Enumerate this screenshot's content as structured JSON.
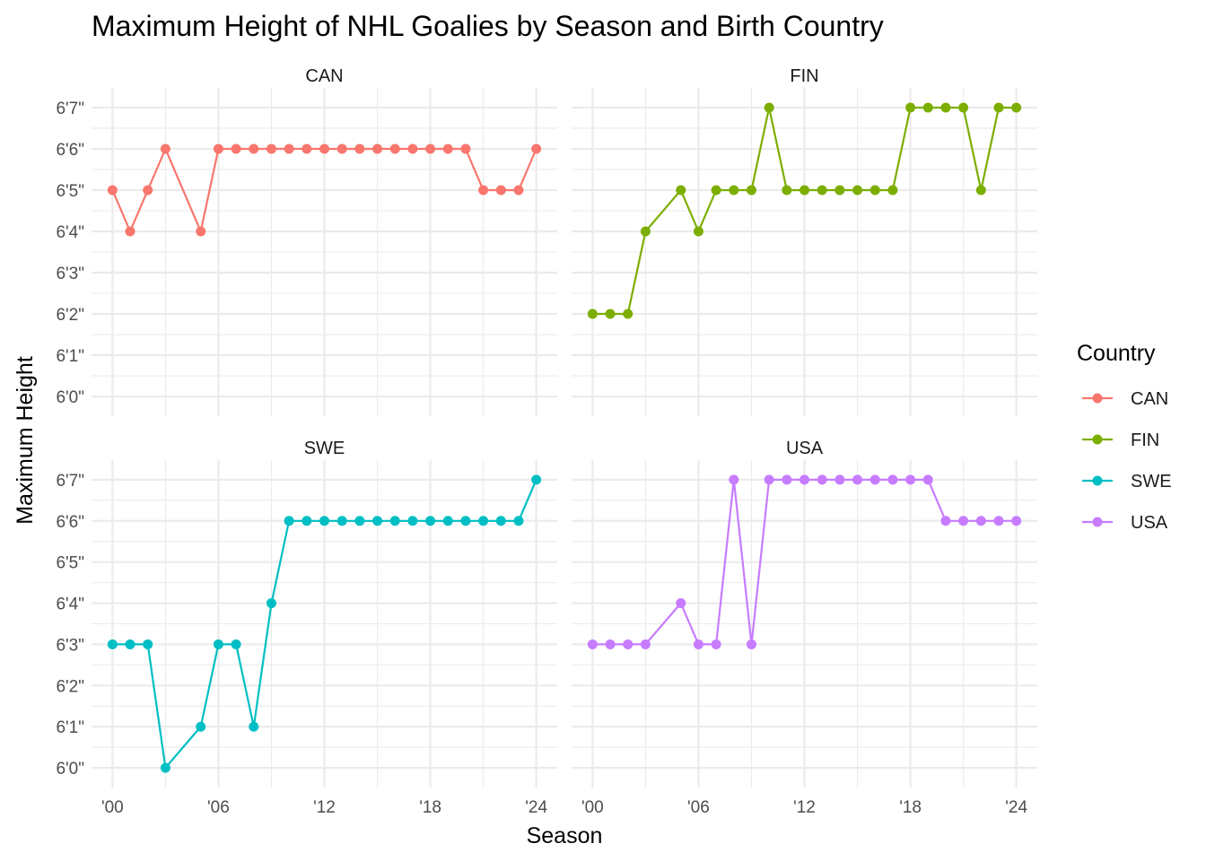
{
  "chart_data": {
    "type": "line",
    "title": "Maximum Height of NHL Goalies by Season and Birth Country",
    "xlabel": "Season",
    "ylabel": "Maximum Height",
    "x": [
      2000,
      2001,
      2002,
      2003,
      2004,
      2005,
      2006,
      2007,
      2008,
      2009,
      2010,
      2011,
      2012,
      2013,
      2014,
      2015,
      2016,
      2017,
      2018,
      2019,
      2020,
      2021,
      2022,
      2023,
      2024
    ],
    "x_ticks": [
      {
        "value": 2000,
        "label": "'00"
      },
      {
        "value": 2006,
        "label": "'06"
      },
      {
        "value": 2012,
        "label": "'12"
      },
      {
        "value": 2018,
        "label": "'18"
      },
      {
        "value": 2024,
        "label": "'24"
      }
    ],
    "y_ticks": [
      {
        "value": 72,
        "label": "6'0\""
      },
      {
        "value": 73,
        "label": "6'1\""
      },
      {
        "value": 74,
        "label": "6'2\""
      },
      {
        "value": 75,
        "label": "6'3\""
      },
      {
        "value": 76,
        "label": "6'4\""
      },
      {
        "value": 77,
        "label": "6'5\""
      },
      {
        "value": 78,
        "label": "6'6\""
      },
      {
        "value": 79,
        "label": "6'7\""
      }
    ],
    "ylim": [
      72,
      79
    ],
    "grid": true,
    "legend": {
      "title": "Country",
      "position": "right"
    },
    "panels": [
      {
        "name": "CAN",
        "color": "#F8766D",
        "points": [
          [
            2000,
            77
          ],
          [
            2001,
            76
          ],
          [
            2002,
            77
          ],
          [
            2003,
            78
          ],
          [
            2005,
            76
          ],
          [
            2006,
            78
          ],
          [
            2007,
            78
          ],
          [
            2008,
            78
          ],
          [
            2009,
            78
          ],
          [
            2010,
            78
          ],
          [
            2011,
            78
          ],
          [
            2012,
            78
          ],
          [
            2013,
            78
          ],
          [
            2014,
            78
          ],
          [
            2015,
            78
          ],
          [
            2016,
            78
          ],
          [
            2017,
            78
          ],
          [
            2018,
            78
          ],
          [
            2019,
            78
          ],
          [
            2020,
            78
          ],
          [
            2021,
            77
          ],
          [
            2022,
            77
          ],
          [
            2023,
            77
          ],
          [
            2024,
            78
          ]
        ]
      },
      {
        "name": "FIN",
        "color": "#7CAE00",
        "points": [
          [
            2000,
            74
          ],
          [
            2001,
            74
          ],
          [
            2002,
            74
          ],
          [
            2003,
            76
          ],
          [
            2005,
            77
          ],
          [
            2006,
            76
          ],
          [
            2007,
            77
          ],
          [
            2008,
            77
          ],
          [
            2009,
            77
          ],
          [
            2010,
            79
          ],
          [
            2011,
            77
          ],
          [
            2012,
            77
          ],
          [
            2013,
            77
          ],
          [
            2014,
            77
          ],
          [
            2015,
            77
          ],
          [
            2016,
            77
          ],
          [
            2017,
            77
          ],
          [
            2018,
            79
          ],
          [
            2019,
            79
          ],
          [
            2020,
            79
          ],
          [
            2021,
            79
          ],
          [
            2022,
            77
          ],
          [
            2023,
            79
          ],
          [
            2024,
            79
          ]
        ]
      },
      {
        "name": "SWE",
        "color": "#00BFC4",
        "points": [
          [
            2000,
            75
          ],
          [
            2001,
            75
          ],
          [
            2002,
            75
          ],
          [
            2003,
            72
          ],
          [
            2005,
            73
          ],
          [
            2006,
            75
          ],
          [
            2007,
            75
          ],
          [
            2008,
            73
          ],
          [
            2009,
            76
          ],
          [
            2010,
            78
          ],
          [
            2011,
            78
          ],
          [
            2012,
            78
          ],
          [
            2013,
            78
          ],
          [
            2014,
            78
          ],
          [
            2015,
            78
          ],
          [
            2016,
            78
          ],
          [
            2017,
            78
          ],
          [
            2018,
            78
          ],
          [
            2019,
            78
          ],
          [
            2020,
            78
          ],
          [
            2021,
            78
          ],
          [
            2022,
            78
          ],
          [
            2023,
            78
          ],
          [
            2024,
            79
          ]
        ]
      },
      {
        "name": "USA",
        "color": "#C77CFF",
        "points": [
          [
            2000,
            75
          ],
          [
            2001,
            75
          ],
          [
            2002,
            75
          ],
          [
            2003,
            75
          ],
          [
            2005,
            76
          ],
          [
            2006,
            75
          ],
          [
            2007,
            75
          ],
          [
            2008,
            79
          ],
          [
            2009,
            75
          ],
          [
            2010,
            79
          ],
          [
            2011,
            79
          ],
          [
            2012,
            79
          ],
          [
            2013,
            79
          ],
          [
            2014,
            79
          ],
          [
            2015,
            79
          ],
          [
            2016,
            79
          ],
          [
            2017,
            79
          ],
          [
            2018,
            79
          ],
          [
            2019,
            79
          ],
          [
            2020,
            78
          ],
          [
            2021,
            78
          ],
          [
            2022,
            78
          ],
          [
            2023,
            78
          ],
          [
            2024,
            78
          ]
        ]
      }
    ]
  }
}
